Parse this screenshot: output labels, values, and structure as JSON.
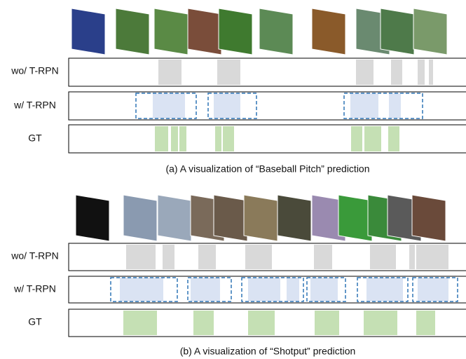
{
  "panels": [
    {
      "rows": [
        {
          "label": "wo/ T-RPN"
        },
        {
          "label": "w/ T-RPN"
        },
        {
          "label": "GT"
        }
      ],
      "caption": "(a) A visualization of “Baseball Pitch” prediction"
    },
    {
      "rows": [
        {
          "label": "wo/ T-RPN"
        },
        {
          "label": "w/ T-RPN"
        },
        {
          "label": "GT"
        }
      ],
      "caption": "(b) A visualization of “Shotput” prediction"
    }
  ]
}
